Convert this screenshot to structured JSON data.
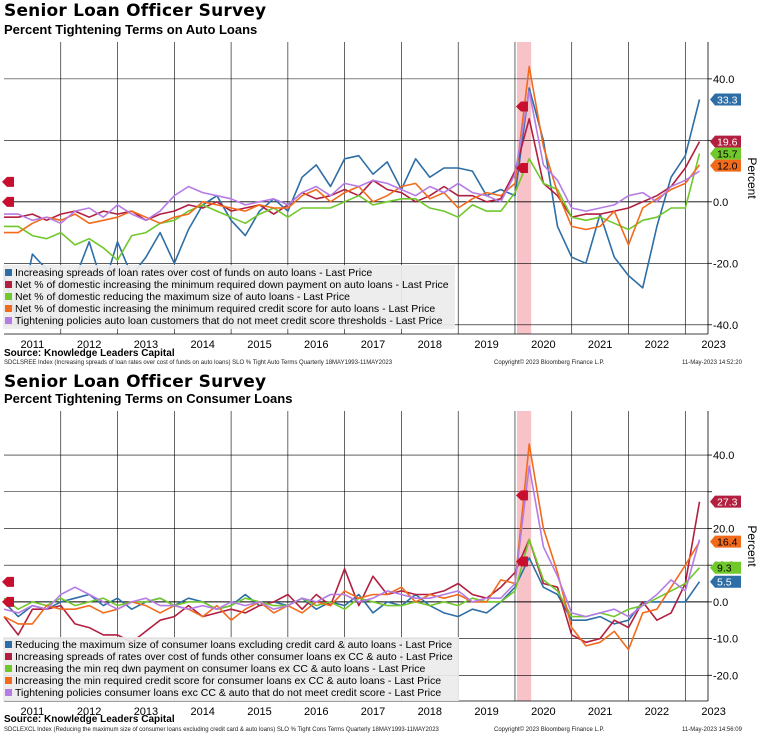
{
  "panels": [
    {
      "title": "Senior Loan Officer Survey",
      "subtitle": "Percent Tightening Terms on Auto Loans",
      "source": "Source: Knowledge Leaders Capital",
      "footer_left": "SDCLSREE Index (Increasing spreads of loan rates over cost of funds on auto loans) SLO % Tight Auto Terms  Quarterly 18MAY1993-11MAY2023",
      "footer_center": "Copyright© 2023 Bloomberg Finance L.P.",
      "footer_right": "11-May-2023 14:52:20",
      "chart_data": {
        "type": "line",
        "ylabel": "Percent",
        "xlim": [
          2011.0,
          2023.4
        ],
        "ylim": [
          -43,
          52
        ],
        "yticks": [
          -40.0,
          -20.0,
          0.0,
          20.0,
          40.0
        ],
        "ytick_labels": [
          "-40.0",
          "-20.0",
          "0.0",
          "20.0",
          "40.0"
        ],
        "xtick_labels": [
          "2011",
          "2012",
          "2013",
          "2014",
          "2015",
          "2016",
          "2017",
          "2018",
          "2019",
          "2020",
          "2021",
          "2022",
          "2023"
        ],
        "shaded_region": [
          2020.0,
          2020.25
        ],
        "x": [
          2011.0,
          2011.25,
          2011.5,
          2011.75,
          2012.0,
          2012.25,
          2012.5,
          2012.75,
          2013.0,
          2013.25,
          2013.5,
          2013.75,
          2014.0,
          2014.25,
          2014.5,
          2014.75,
          2015.0,
          2015.25,
          2015.5,
          2015.75,
          2016.0,
          2016.25,
          2016.5,
          2016.75,
          2017.0,
          2017.25,
          2017.5,
          2017.75,
          2018.0,
          2018.25,
          2018.5,
          2018.75,
          2019.0,
          2019.25,
          2019.5,
          2019.75,
          2020.0,
          2020.25,
          2020.5,
          2020.75,
          2021.0,
          2021.25,
          2021.5,
          2021.75,
          2022.0,
          2022.25,
          2022.5,
          2022.75,
          2023.0,
          2023.25
        ],
        "series": [
          {
            "name": "Increasing spreads of loan rates over cost of funds on auto loans - Last Price",
            "color": "#2e6ea6",
            "last": 33.3,
            "last_label": "33.3",
            "values": [
              -24,
              -40,
              -17,
              -22,
              -35,
              -25,
              -13,
              -28,
              -13,
              -24,
              -18,
              -10,
              -20,
              -9,
              -1,
              2,
              -6,
              -11,
              -3,
              1,
              -3,
              8,
              12,
              5,
              14,
              15,
              9,
              13,
              4,
              14,
              8,
              11,
              11,
              10,
              2,
              4,
              2,
              37,
              20,
              -8,
              -18,
              -20,
              -4,
              -18,
              -24,
              -28,
              -8,
              8,
              15,
              33.3
            ]
          },
          {
            "name": "Net % of domestic increasing the minimum required down payment on auto loans - Last Price",
            "color": "#b21f3f",
            "last": 19.6,
            "last_label": "19.6",
            "values": [
              -5,
              -5,
              -4,
              -6,
              -4,
              -3,
              -5,
              -3,
              -4,
              -3,
              -6,
              -4,
              -3,
              -1,
              -2,
              0,
              -3,
              -2,
              -1,
              -4,
              -1,
              3,
              1,
              2,
              4,
              2,
              7,
              4,
              3,
              0,
              2,
              5,
              2,
              2,
              0,
              1,
              10,
              27,
              6,
              2,
              -5,
              -4,
              -4,
              -3,
              -2,
              0,
              2,
              5,
              11,
              19.6
            ]
          },
          {
            "name": "Net % of domestic reducing the maximum size of auto loans - Last Price",
            "color": "#70c82a",
            "last": 15.7,
            "last_label": "15.7",
            "values": [
              -8,
              -8,
              -11,
              -12,
              -10,
              -14,
              -12,
              -15,
              -19,
              -11,
              -10,
              -7,
              -6,
              -3,
              -1,
              -3,
              -5,
              -7,
              -4,
              -2,
              -5,
              -2,
              -2,
              -2,
              0,
              2,
              -1,
              0,
              1,
              1,
              -2,
              -3,
              -5,
              -1,
              -3,
              -3,
              3,
              14,
              6,
              4,
              -5,
              -6,
              -5,
              -7,
              -9,
              -6,
              -5,
              -2,
              -2,
              15.7
            ]
          },
          {
            "name": "Net % of domestic increasing the minimum required credit score for auto loans - Last Price",
            "color": "#f26b1d",
            "last": 12.0,
            "last_label": "12.0",
            "values": [
              -10,
              -10,
              -7,
              -5,
              -6,
              -4,
              -7,
              -6,
              -5,
              -3,
              -5,
              -7,
              -5,
              -4,
              0,
              -1,
              -2,
              -3,
              -1,
              -2,
              -2,
              2,
              4,
              0,
              3,
              5,
              0,
              2,
              5,
              6,
              1,
              3,
              -2,
              1,
              3,
              2,
              6,
              44,
              18,
              3,
              -8,
              -9,
              -8,
              -3,
              -14,
              -2,
              1,
              4,
              6,
              12.0
            ]
          },
          {
            "name": "Tightening policies auto loan customers that do not meet credit score thresholds - Last Price",
            "color": "#b57ce6",
            "last": 10.0,
            "last_label": "",
            "values": [
              -4,
              -4,
              -6,
              -5,
              -7,
              -3,
              -2,
              -5,
              -1,
              -4,
              -6,
              -3,
              2,
              5,
              3,
              2,
              1,
              -1,
              0,
              1,
              -1,
              3,
              5,
              2,
              6,
              5,
              7,
              6,
              4,
              2,
              5,
              3,
              6,
              3,
              2,
              0,
              9,
              36,
              12,
              7,
              -2,
              -3,
              -2,
              -1,
              2,
              3,
              0,
              5,
              7,
              10
            ]
          }
        ]
      }
    },
    {
      "title": "Senior Loan Officer Survey",
      "subtitle": "Percent Tightening Terms on Consumer Loans",
      "source": "Source: Knowledge Leaders Capital",
      "footer_left": "SDCLEXCL Index (Reducing the maximum size of consumer loans excluding credit card & auto loans) SLO % Tight Cons Terms  Quarterly 18MAY1993-11MAY2023",
      "footer_center": "Copyright© 2023 Bloomberg Finance L.P.",
      "footer_right": "11-May-2023 14:56:09",
      "chart_data": {
        "type": "line",
        "ylabel": "Percent",
        "xlim": [
          2011.0,
          2023.4
        ],
        "ylim": [
          -27,
          52
        ],
        "yticks": [
          -20.0,
          -10.0,
          0.0,
          10.0,
          20.0,
          30.0,
          40.0
        ],
        "ytick_labels": [
          "-20.0",
          "-10.0",
          "0.0",
          "10.0",
          "20.0",
          "",
          "40.0"
        ],
        "xtick_labels": [
          "2011",
          "2012",
          "2013",
          "2014",
          "2015",
          "2016",
          "2017",
          "2018",
          "2019",
          "2020",
          "2021",
          "2022",
          "2023"
        ],
        "shaded_region": [
          2020.0,
          2020.25
        ],
        "x": [
          2011.0,
          2011.25,
          2011.5,
          2011.75,
          2012.0,
          2012.25,
          2012.5,
          2012.75,
          2013.0,
          2013.25,
          2013.5,
          2013.75,
          2014.0,
          2014.25,
          2014.5,
          2014.75,
          2015.0,
          2015.25,
          2015.5,
          2015.75,
          2016.0,
          2016.25,
          2016.5,
          2016.75,
          2017.0,
          2017.25,
          2017.5,
          2017.75,
          2018.0,
          2018.25,
          2018.5,
          2018.75,
          2019.0,
          2019.25,
          2019.5,
          2019.75,
          2020.0,
          2020.25,
          2020.5,
          2020.75,
          2021.0,
          2021.25,
          2021.5,
          2021.75,
          2022.0,
          2022.25,
          2022.5,
          2022.75,
          2023.0,
          2023.25
        ],
        "series": [
          {
            "name": "Reducing the maximum size of consumer loans excluding credit card & auto loans - Last Price",
            "color": "#2e6ea6",
            "last": 5.5,
            "last_label": "5.5",
            "values": [
              0,
              -4,
              -1,
              -2,
              0,
              1,
              2,
              -1,
              1,
              -2,
              0,
              1,
              -1,
              1,
              0,
              -2,
              -1,
              2,
              -1,
              0,
              -1,
              1,
              -2,
              0,
              -1,
              2,
              -3,
              0,
              -1,
              2,
              -1,
              -3,
              -4,
              -2,
              -3,
              0,
              4,
              12,
              4,
              2,
              -5,
              -5,
              -4,
              -6,
              -5,
              0,
              0,
              0,
              0,
              5.5
            ]
          },
          {
            "name": "Increasing spreads of rates over cost of funds other consumer loans ex CC & auto - Last Price",
            "color": "#b21f3f",
            "last": 27.3,
            "last_label": "27.3",
            "values": [
              -4,
              -9,
              -2,
              -2,
              -1,
              -6,
              -7,
              -9,
              -9,
              -11,
              -8,
              -5,
              -4,
              -1,
              -4,
              -3,
              -2,
              -3,
              -1,
              0,
              2,
              -2,
              2,
              -1,
              9,
              -1,
              7,
              2,
              3,
              2,
              2,
              3,
              5,
              2,
              1,
              4,
              8,
              17,
              5,
              4,
              -9,
              -11,
              -10,
              -5,
              -7,
              0,
              -5,
              -3,
              5,
              27.3
            ]
          },
          {
            "name": "Increasing the min req dwn payment on consumer loans ex CC & auto loans - Last Price",
            "color": "#70c82a",
            "last": 9.3,
            "last_label": "9.3",
            "values": [
              1,
              -2,
              0,
              -1,
              1,
              -1,
              0,
              1,
              -1,
              0,
              0,
              1,
              -1,
              0,
              0,
              -2,
              -1,
              1,
              0,
              -1,
              -1,
              1,
              -1,
              0,
              -2,
              1,
              0,
              -1,
              -1,
              0,
              -1,
              0,
              -1,
              1,
              0,
              0,
              3,
              17,
              6,
              3,
              -4,
              -4,
              -3,
              -4,
              -2,
              -1,
              1,
              3,
              5,
              9.3
            ]
          },
          {
            "name": "Increasing the min required credit score for consumer loans ex CC & auto loans - Last Price",
            "color": "#f26b1d",
            "last": 16.4,
            "last_label": "16.4",
            "values": [
              -4,
              -6,
              -6,
              -1,
              -2,
              -2,
              -1,
              -3,
              -2,
              0,
              -1,
              -3,
              -1,
              -2,
              -4,
              -1,
              -5,
              -2,
              0,
              -3,
              -1,
              -3,
              0,
              -1,
              3,
              1,
              2,
              2,
              4,
              0,
              2,
              1,
              2,
              0,
              0,
              6,
              5,
              43,
              20,
              8,
              -7,
              -12,
              -11,
              -8,
              -13,
              -3,
              -2,
              4,
              10,
              16.4
            ]
          },
          {
            "name": "Tightening policies consumer loans exc CC & auto that do not meet credit score - Last Price",
            "color": "#b57ce6",
            "last": 17.0,
            "last_label": "",
            "values": [
              -2,
              -3,
              -1,
              -2,
              2,
              4,
              2,
              0,
              -2,
              0,
              1,
              -1,
              -1,
              -2,
              -1,
              -2,
              0,
              -1,
              0,
              -2,
              -1,
              1,
              0,
              2,
              2,
              0,
              1,
              3,
              2,
              1,
              1,
              2,
              3,
              0,
              1,
              1,
              5,
              37,
              15,
              7,
              -3,
              -4,
              -3,
              -2,
              -4,
              -1,
              2,
              6,
              3,
              17
            ]
          }
        ]
      }
    }
  ]
}
